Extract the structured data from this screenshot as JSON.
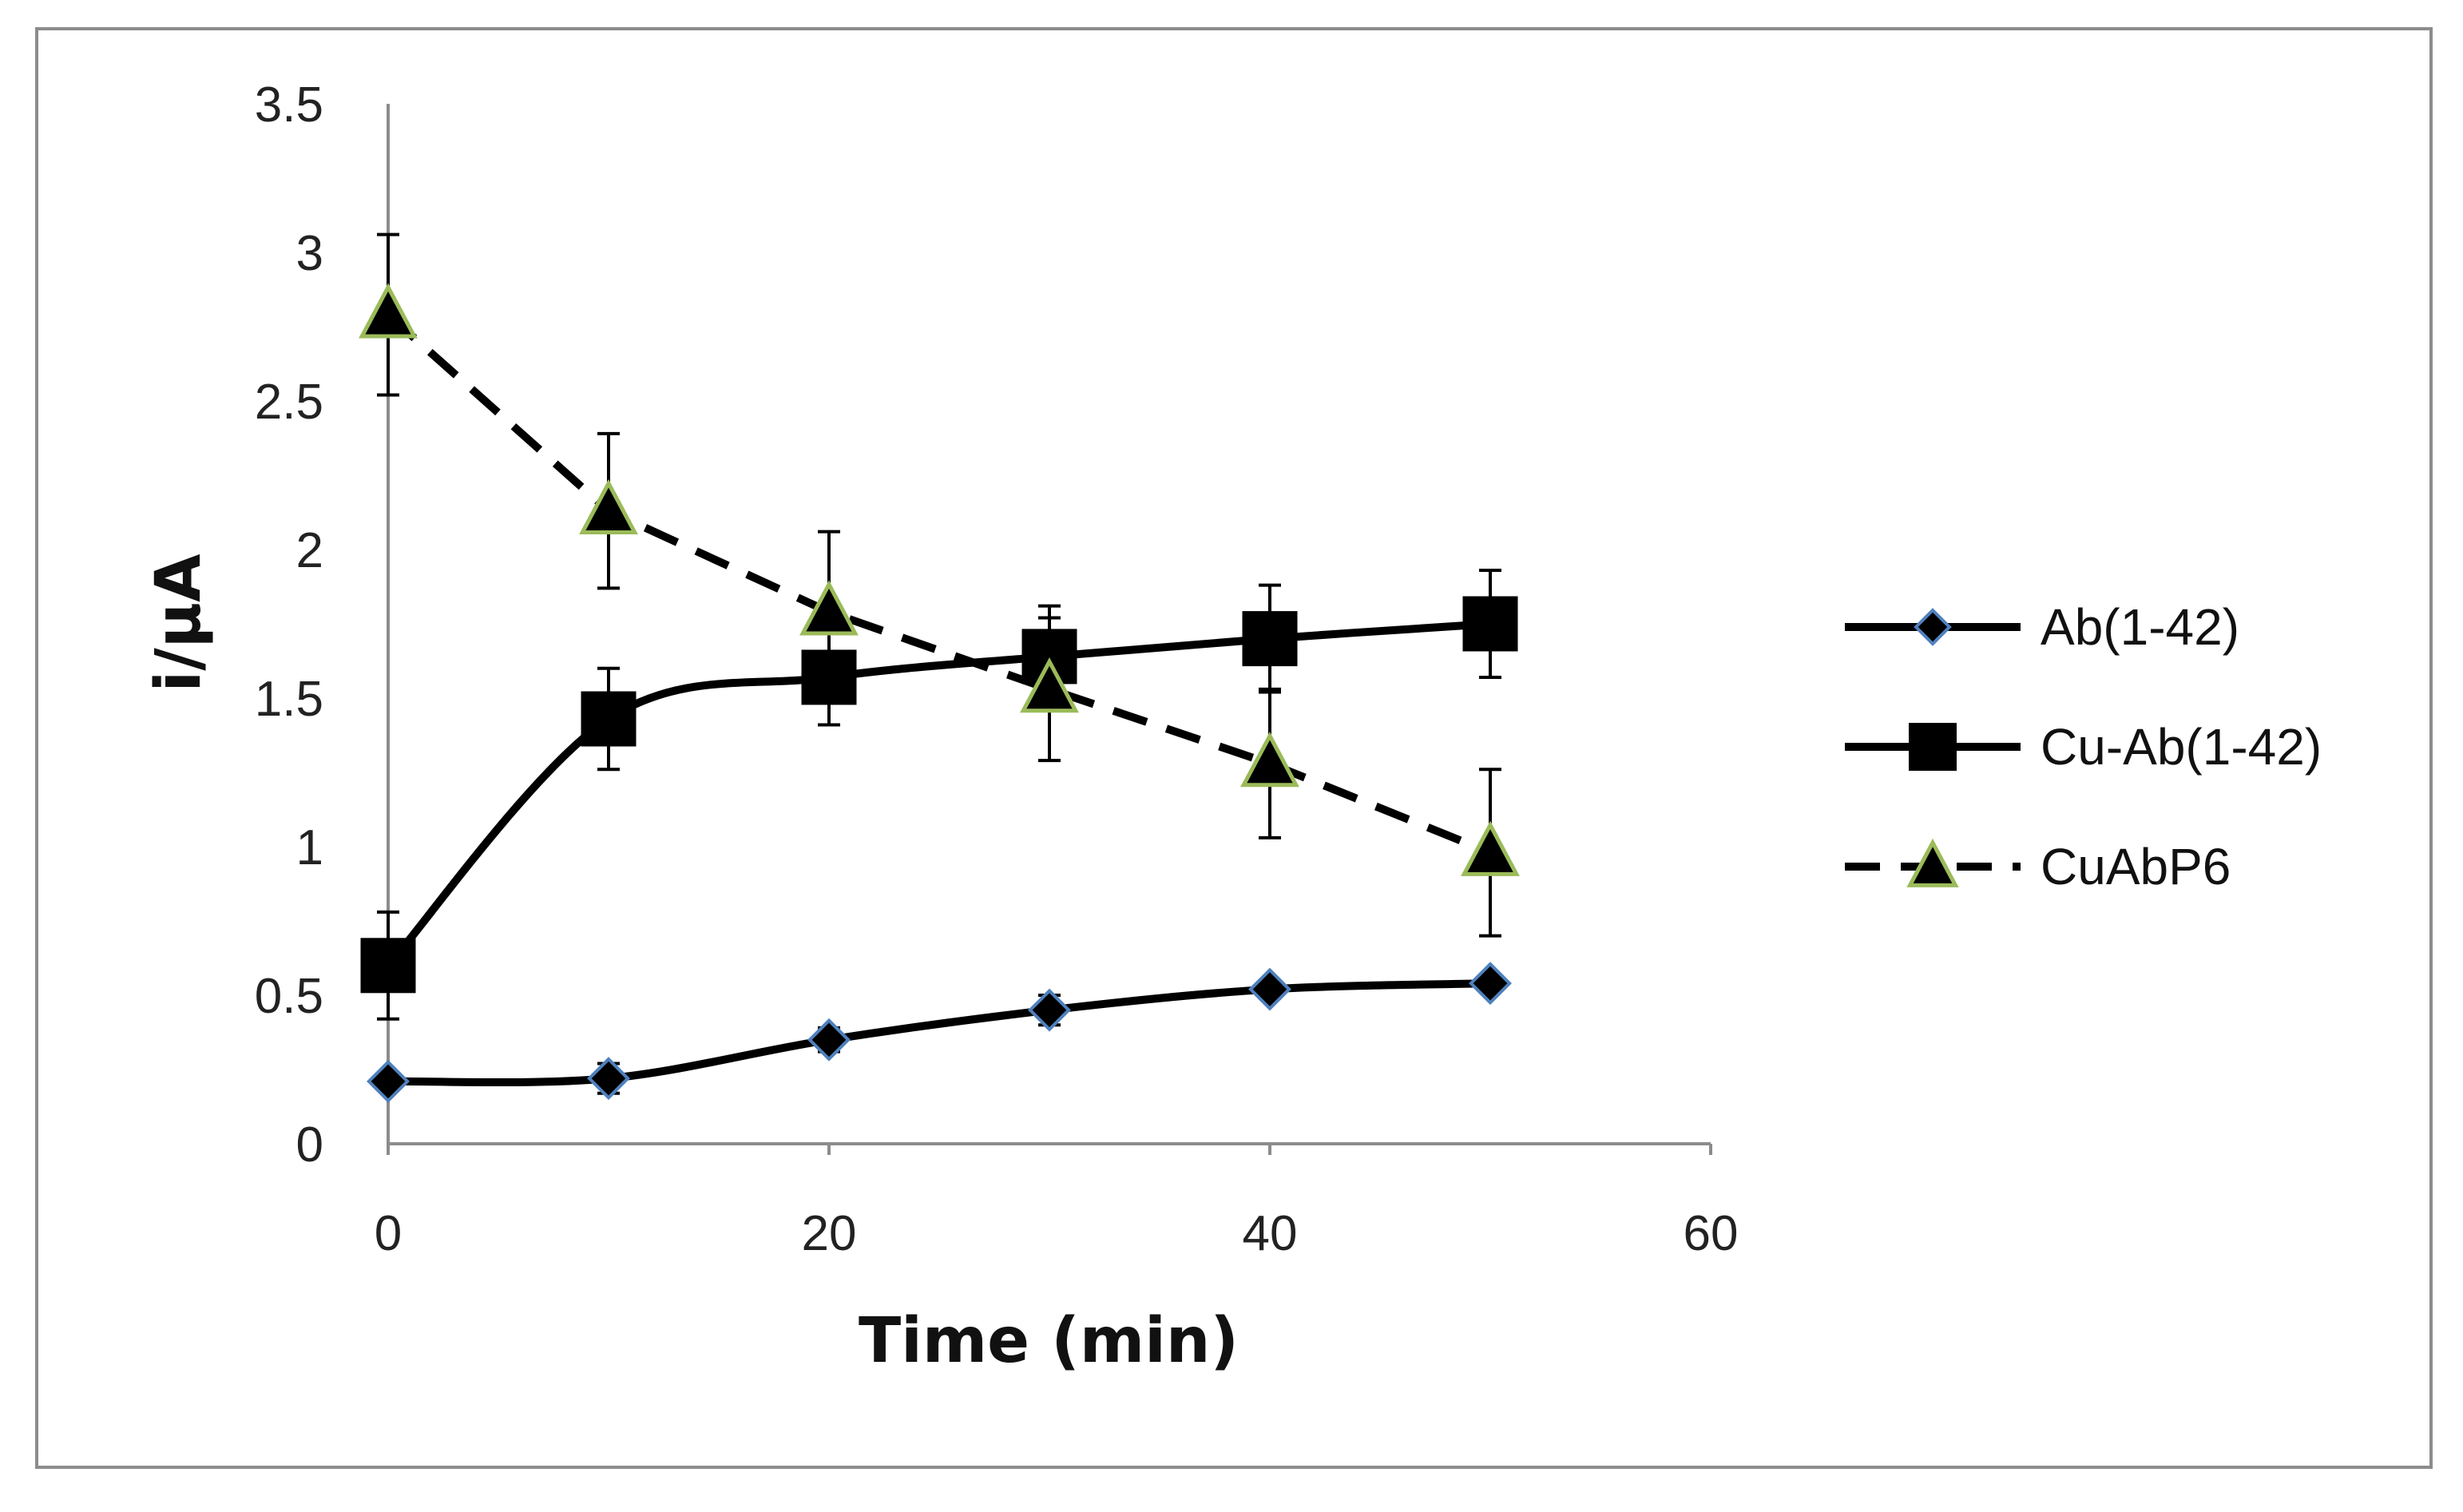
{
  "chart_data": {
    "type": "line",
    "title": "",
    "xlabel": "Time (min)",
    "ylabel": "i/μA",
    "xlim": [
      0,
      60
    ],
    "ylim": [
      0,
      3.5
    ],
    "x_ticks": [
      0,
      20,
      40,
      60
    ],
    "x_tick_labels": [
      "0",
      "20",
      "40",
      "60"
    ],
    "y_ticks": [
      0,
      0.5,
      1,
      1.5,
      2,
      2.5,
      3,
      3.5
    ],
    "y_tick_labels": [
      "0",
      "0.5",
      "1",
      "1.5",
      "2",
      "2.5",
      "3",
      "3.5"
    ],
    "grid": false,
    "legend_position": "right",
    "series": [
      {
        "name": "Ab(1-42)",
        "marker": "diamond",
        "line_style": "solid",
        "smooth": true,
        "x": [
          0,
          10,
          20,
          30,
          40,
          50
        ],
        "values": [
          0.21,
          0.22,
          0.35,
          0.45,
          0.52,
          0.54
        ],
        "errors": [
          0.02,
          0.05,
          0.04,
          0.05,
          0.03,
          0.03
        ]
      },
      {
        "name": "Cu-Ab(1-42)",
        "marker": "square",
        "line_style": "solid",
        "smooth": true,
        "x": [
          0,
          10,
          20,
          30,
          40,
          50
        ],
        "values": [
          0.6,
          1.43,
          1.57,
          1.64,
          1.7,
          1.75
        ],
        "errors": [
          0.18,
          0.17,
          0.16,
          0.17,
          0.18,
          0.18
        ]
      },
      {
        "name": "CuAbP6",
        "marker": "triangle",
        "line_style": "dashed",
        "smooth": false,
        "x": [
          0,
          10,
          20,
          30,
          40,
          50
        ],
        "values": [
          2.79,
          2.13,
          1.79,
          1.53,
          1.28,
          0.98
        ],
        "errors": [
          0.27,
          0.26,
          0.27,
          0.24,
          0.25,
          0.28
        ]
      }
    ]
  },
  "colors": {
    "line": "#000000",
    "axis": "#8c8c8c",
    "diamond_fill": "#000000",
    "diamond_edge": "#4f81bd",
    "triangle_fill": "#000000",
    "triangle_edge": "#9bbb59"
  }
}
